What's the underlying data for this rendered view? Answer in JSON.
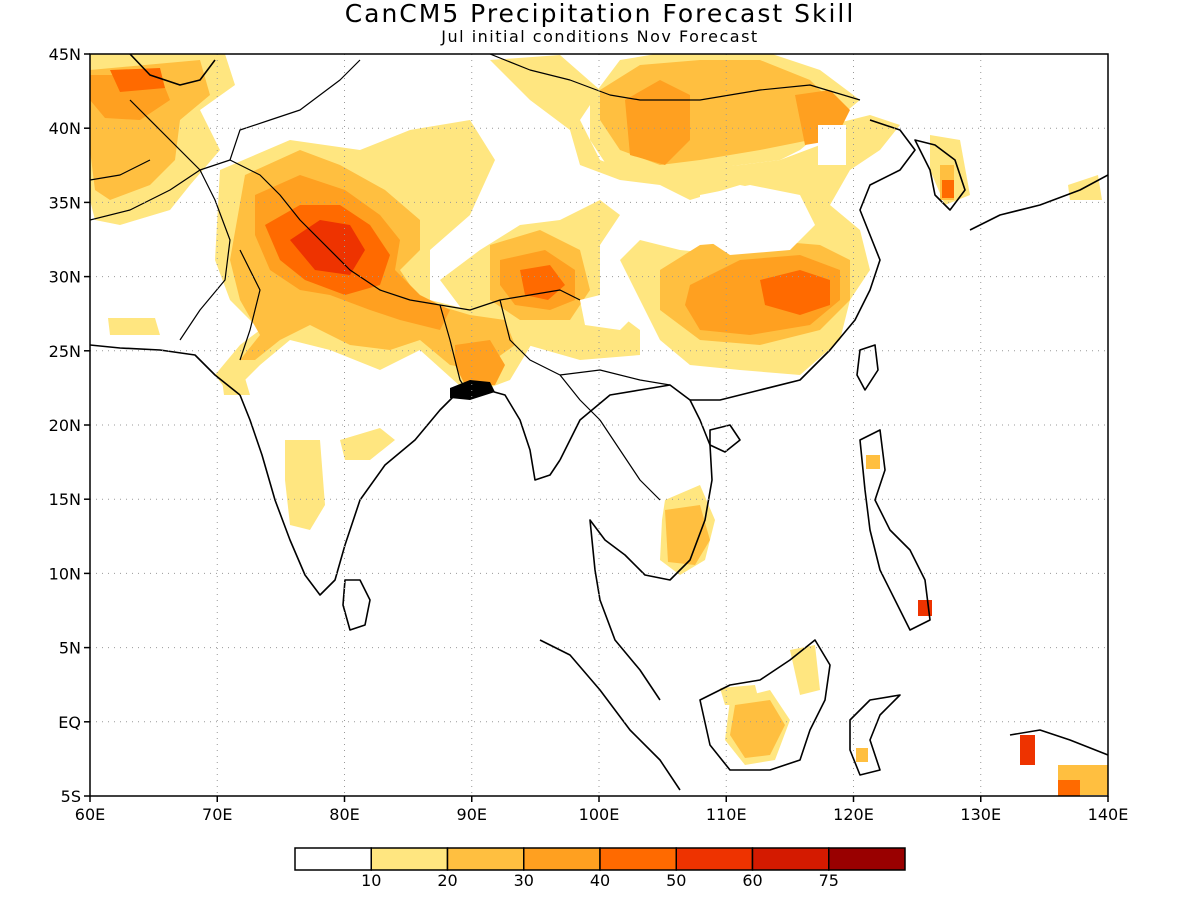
{
  "title": "CanCM5 Precipitation Forecast Skill",
  "subtitle": "Jul initial conditions   Nov Forecast",
  "map": {
    "lon_range": [
      60,
      140
    ],
    "lat_range": [
      -5,
      45
    ],
    "lon_ticks": [
      {
        "value": 60,
        "label": "60E"
      },
      {
        "value": 70,
        "label": "70E"
      },
      {
        "value": 80,
        "label": "80E"
      },
      {
        "value": 90,
        "label": "90E"
      },
      {
        "value": 100,
        "label": "100E"
      },
      {
        "value": 110,
        "label": "110E"
      },
      {
        "value": 120,
        "label": "120E"
      },
      {
        "value": 130,
        "label": "130E"
      },
      {
        "value": 140,
        "label": "140E"
      }
    ],
    "lat_ticks": [
      {
        "value": 45,
        "label": "45N"
      },
      {
        "value": 40,
        "label": "40N"
      },
      {
        "value": 35,
        "label": "35N"
      },
      {
        "value": 30,
        "label": "30N"
      },
      {
        "value": 25,
        "label": "25N"
      },
      {
        "value": 20,
        "label": "20N"
      },
      {
        "value": 15,
        "label": "15N"
      },
      {
        "value": 10,
        "label": "10N"
      },
      {
        "value": 5,
        "label": "5N"
      },
      {
        "value": 0,
        "label": "EQ"
      },
      {
        "value": -5,
        "label": "5S"
      }
    ],
    "grid": true
  },
  "colorbar": {
    "colors": [
      "#ffffff",
      "#ffe680",
      "#ffbf40",
      "#ffa020",
      "#ff6a00",
      "#ee3300",
      "#d41a00",
      "#990000"
    ],
    "labels": [
      "10",
      "20",
      "30",
      "40",
      "50",
      "60",
      "75"
    ]
  },
  "chart_data": {
    "type": "heatmap",
    "variable": "precipitation forecast skill",
    "levels": [
      10,
      20,
      30,
      40,
      50,
      60,
      75
    ],
    "regions": [
      {
        "lon": 77,
        "lat": 31,
        "rx": 4.5,
        "ry": 3.5,
        "level": 20
      },
      {
        "lon": 78,
        "lat": 31,
        "rx": 3.5,
        "ry": 2.8,
        "level": 30
      },
      {
        "lon": 78,
        "lat": 31,
        "rx": 2.5,
        "ry": 2,
        "level": 40
      },
      {
        "lon": 79,
        "lat": 31,
        "rx": 1.6,
        "ry": 1.3,
        "level": 50
      },
      {
        "lon": 80,
        "lat": 31.5,
        "rx": 0.8,
        "ry": 0.7,
        "level": 60
      },
      {
        "lon": 96,
        "lat": 29,
        "rx": 3,
        "ry": 2,
        "level": 30
      },
      {
        "lon": 96,
        "lat": 29,
        "rx": 1.5,
        "ry": 1.1,
        "level": 40
      },
      {
        "lon": 114,
        "lat": 28.5,
        "rx": 6,
        "ry": 3.5,
        "level": 20
      },
      {
        "lon": 115,
        "lat": 28.5,
        "rx": 4,
        "ry": 2.2,
        "level": 30
      },
      {
        "lon": 115.5,
        "lat": 28.8,
        "rx": 2.2,
        "ry": 1.2,
        "level": 40
      },
      {
        "lon": 105,
        "lat": 40,
        "rx": 4,
        "ry": 3.5,
        "level": 20
      },
      {
        "lon": 105,
        "lat": 40,
        "rx": 2,
        "ry": 1.5,
        "level": 30
      },
      {
        "lon": 117,
        "lat": 41,
        "rx": 2.5,
        "ry": 2.5,
        "level": 30
      },
      {
        "lon": 117,
        "lat": 41,
        "rx": 1.2,
        "ry": 1.2,
        "level": 40
      },
      {
        "lon": 64,
        "lat": 43,
        "rx": 3,
        "ry": 2,
        "level": 30
      },
      {
        "lon": 64.5,
        "lat": 43.3,
        "rx": 1.5,
        "ry": 1,
        "level": 40
      },
      {
        "lon": 106,
        "lat": 13,
        "rx": 1.8,
        "ry": 2.5,
        "level": 20
      },
      {
        "lon": 106,
        "lat": 12.5,
        "rx": 1,
        "ry": 1.2,
        "level": 30
      },
      {
        "lon": 112,
        "lat": 0,
        "rx": 2,
        "ry": 1.5,
        "level": 20
      },
      {
        "lon": 112,
        "lat": 0,
        "rx": 1,
        "ry": 0.8,
        "level": 30
      },
      {
        "lon": 89.5,
        "lat": 24,
        "rx": 2,
        "ry": 2,
        "level": 30
      },
      {
        "lon": 89.5,
        "lat": 24,
        "rx": 1,
        "ry": 1,
        "level": 40
      }
    ]
  }
}
